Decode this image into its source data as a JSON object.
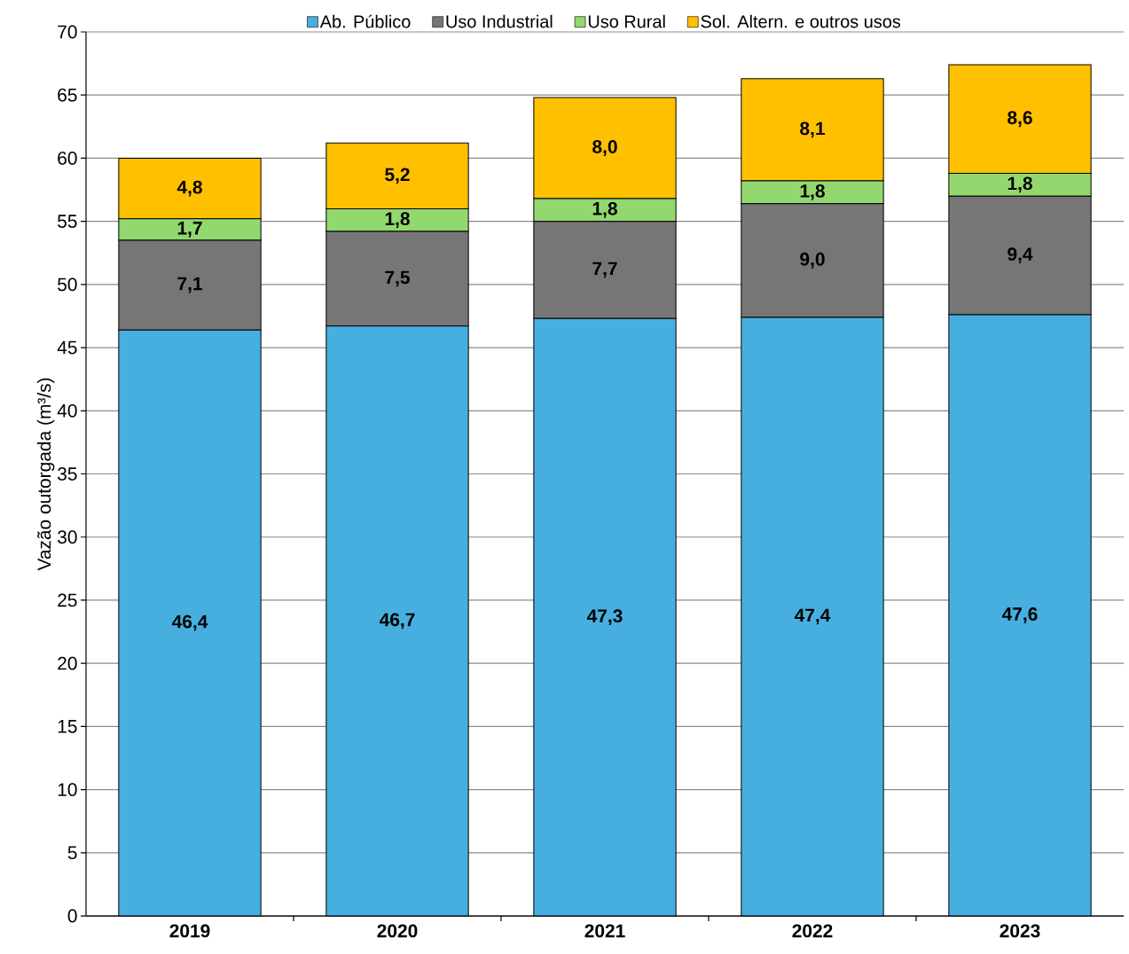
{
  "chart_data": {
    "type": "bar",
    "stacked": true,
    "ylabel": "Vazão outorgada (m³/s)",
    "categories": [
      "2019",
      "2020",
      "2021",
      "2022",
      "2023"
    ],
    "series": [
      {
        "name": "Ab. Público",
        "color": "#47afdf",
        "values": [
          46.4,
          46.7,
          47.3,
          47.4,
          47.6
        ],
        "value_labels": [
          "46,4",
          "46,7",
          "47,3",
          "47,4",
          "47,6"
        ]
      },
      {
        "name": "Uso Industrial",
        "color": "#767676",
        "values": [
          7.1,
          7.5,
          7.7,
          9.0,
          9.4
        ],
        "value_labels": [
          "7,1",
          "7,5",
          "7,7",
          "9,0",
          "9,4"
        ]
      },
      {
        "name": "Uso Rural",
        "color": "#92d86f",
        "values": [
          1.7,
          1.8,
          1.8,
          1.8,
          1.8
        ],
        "value_labels": [
          "1,7",
          "1,8",
          "1,8",
          "1,8",
          "1,8"
        ]
      },
      {
        "name": "Sol. Altern. e outros usos",
        "color": "#ffc000",
        "values": [
          4.8,
          5.2,
          8.0,
          8.1,
          8.6
        ],
        "value_labels": [
          "4,8",
          "5,2",
          "8,0",
          "8,1",
          "8,6"
        ]
      }
    ],
    "ylim": [
      0,
      70
    ],
    "yticks": [
      0,
      5,
      10,
      15,
      20,
      25,
      30,
      35,
      40,
      45,
      50,
      55,
      60,
      65,
      70
    ],
    "grid": "y",
    "legend": "top"
  }
}
